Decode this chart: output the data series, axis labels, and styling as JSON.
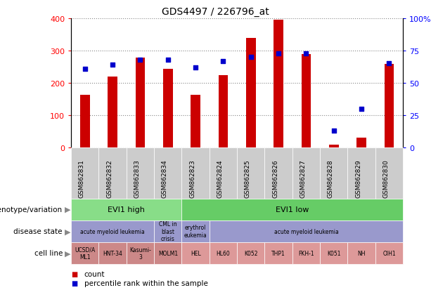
{
  "title": "GDS4497 / 226796_at",
  "samples": [
    "GSM862831",
    "GSM862832",
    "GSM862833",
    "GSM862834",
    "GSM862823",
    "GSM862824",
    "GSM862825",
    "GSM862826",
    "GSM862827",
    "GSM862828",
    "GSM862829",
    "GSM862830"
  ],
  "counts": [
    163,
    220,
    278,
    243,
    163,
    224,
    340,
    395,
    290,
    8,
    30,
    258
  ],
  "percentiles": [
    61,
    64,
    68,
    68,
    62,
    67,
    70,
    73,
    73,
    13,
    30,
    65
  ],
  "ylim_left": [
    0,
    400
  ],
  "ylim_right": [
    0,
    100
  ],
  "yticks_left": [
    0,
    100,
    200,
    300,
    400
  ],
  "yticks_right": [
    0,
    25,
    50,
    75,
    100
  ],
  "ytick_labels_right": [
    "0",
    "25",
    "50",
    "75",
    "100%"
  ],
  "bar_color": "#cc0000",
  "dot_color": "#0000cc",
  "grid_color": "#888888",
  "bg_color": "#ffffff",
  "xlabel_bg": "#cccccc",
  "genotype_high_color": "#88dd88",
  "genotype_low_color": "#66cc66",
  "disease_purple": "#9999cc",
  "cell_dark_pink": "#cc8888",
  "cell_light_pink": "#dd9999",
  "disease_groups": [
    {
      "label": "acute myeloid leukemia",
      "start": 0,
      "end": 2,
      "color": "#9999cc"
    },
    {
      "label": "CML in\nblast\ncrisis",
      "start": 3,
      "end": 3,
      "color": "#9999cc"
    },
    {
      "label": "erythrol\neukemia",
      "start": 4,
      "end": 4,
      "color": "#9999cc"
    },
    {
      "label": "acute myeloid leukemia",
      "start": 5,
      "end": 11,
      "color": "#9999cc"
    }
  ],
  "cell_lines": [
    {
      "label": "UCSD/A\nML1",
      "start": 0,
      "end": 0,
      "color": "#cc8888"
    },
    {
      "label": "HNT-34",
      "start": 1,
      "end": 1,
      "color": "#cc8888"
    },
    {
      "label": "Kasumi-\n3",
      "start": 2,
      "end": 2,
      "color": "#cc8888"
    },
    {
      "label": "MOLM1",
      "start": 3,
      "end": 3,
      "color": "#cc8888"
    },
    {
      "label": "HEL",
      "start": 4,
      "end": 4,
      "color": "#dd9999"
    },
    {
      "label": "HL60",
      "start": 5,
      "end": 5,
      "color": "#dd9999"
    },
    {
      "label": "K052",
      "start": 6,
      "end": 6,
      "color": "#dd9999"
    },
    {
      "label": "THP1",
      "start": 7,
      "end": 7,
      "color": "#dd9999"
    },
    {
      "label": "FKH-1",
      "start": 8,
      "end": 8,
      "color": "#dd9999"
    },
    {
      "label": "K051",
      "start": 9,
      "end": 9,
      "color": "#dd9999"
    },
    {
      "label": "NH",
      "start": 10,
      "end": 10,
      "color": "#dd9999"
    },
    {
      "label": "OIH1",
      "start": 11,
      "end": 11,
      "color": "#dd9999"
    }
  ],
  "row_labels": [
    "genotype/variation",
    "disease state",
    "cell line"
  ],
  "legend_items": [
    {
      "color": "#cc0000",
      "label": "count"
    },
    {
      "color": "#0000cc",
      "label": "percentile rank within the sample"
    }
  ]
}
